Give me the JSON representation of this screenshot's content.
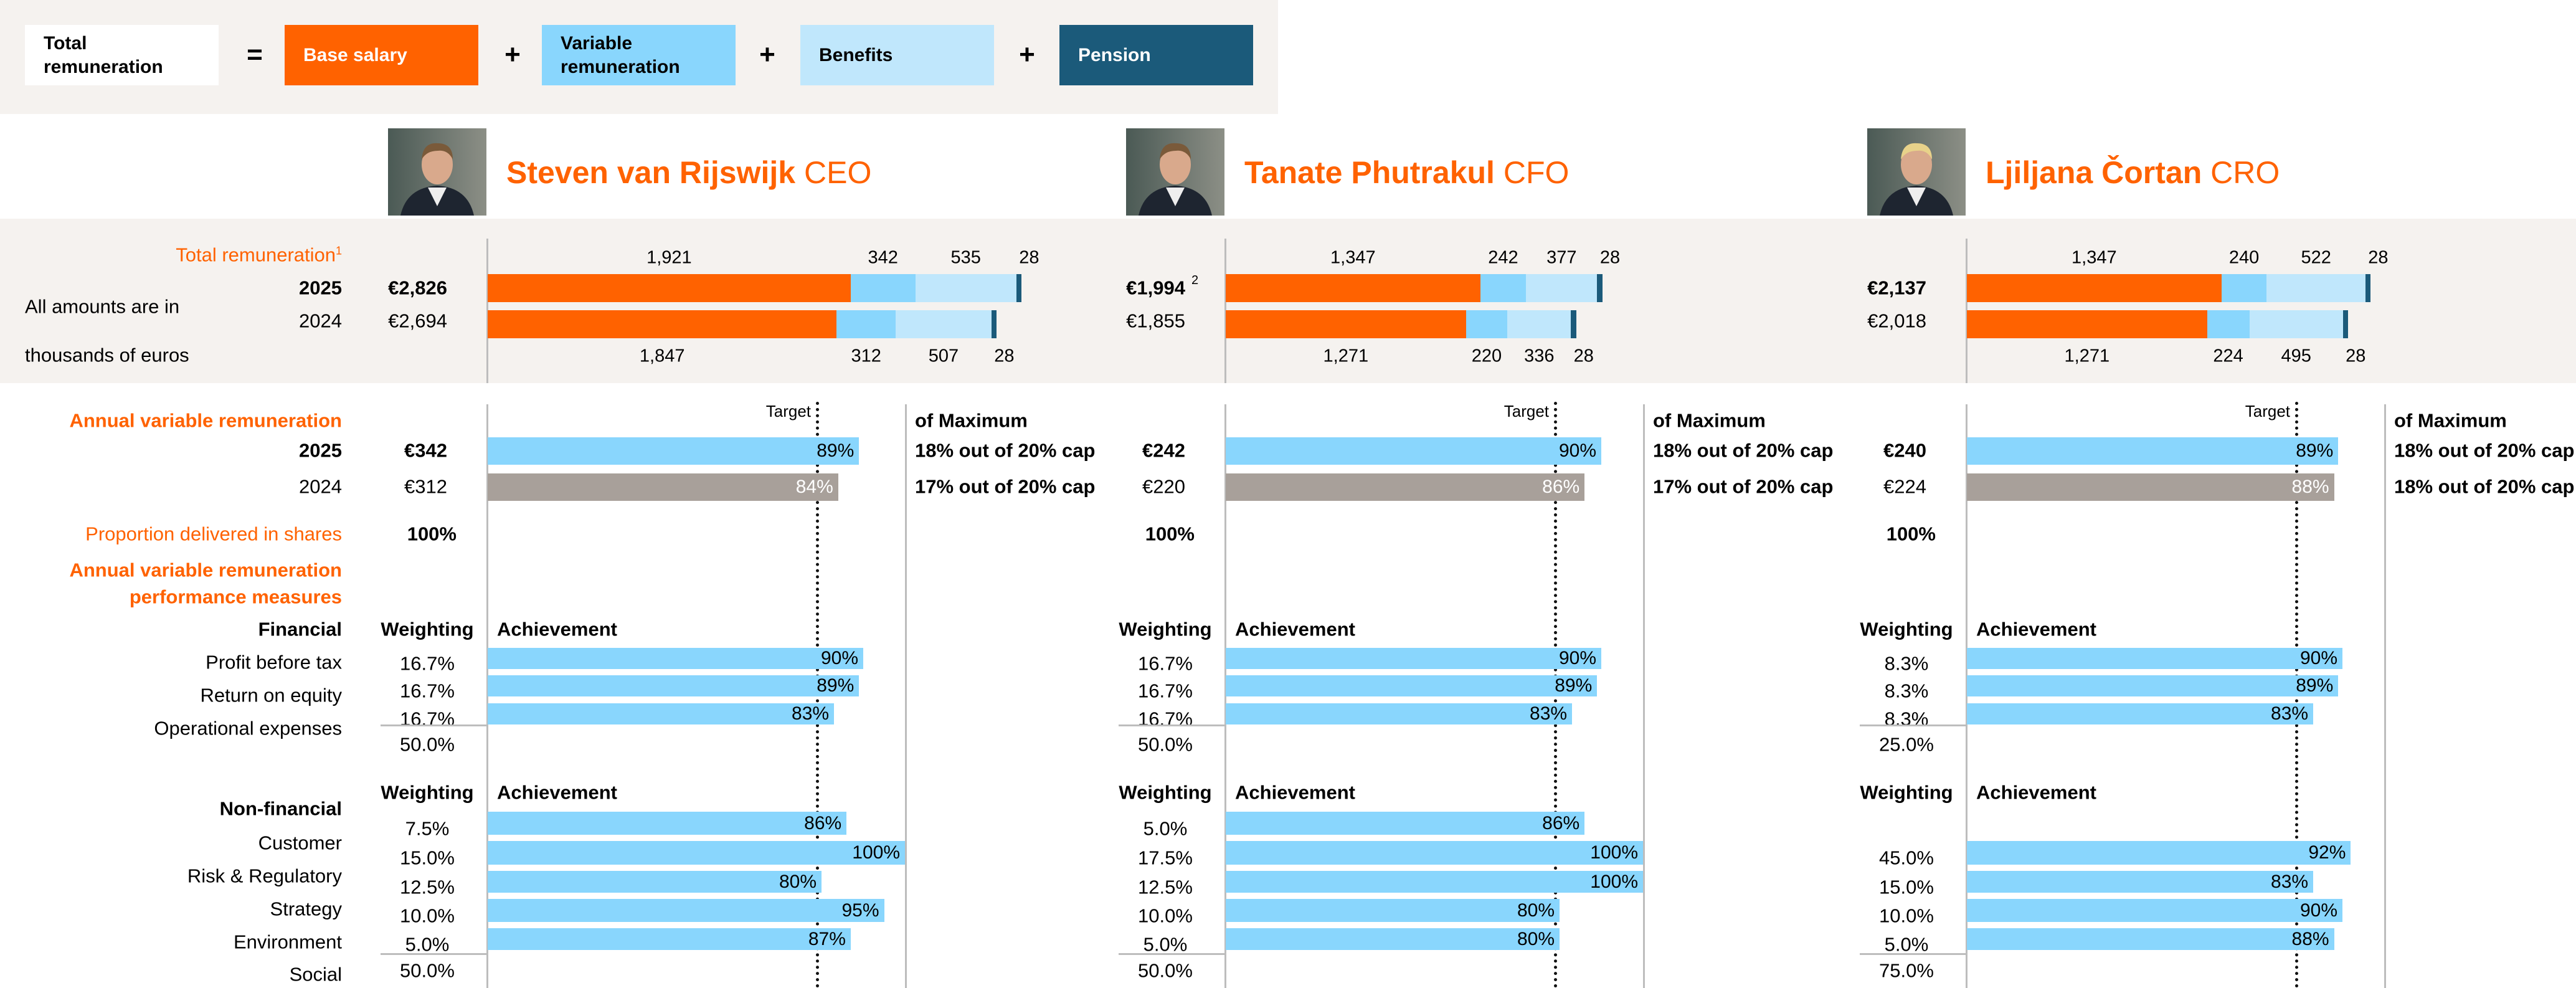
{
  "legend": {
    "total_label": "Total remuneration",
    "equals": "=",
    "plus": "+",
    "items": [
      {
        "label": "Base salary",
        "color": "#ff6200",
        "text_color": "#ffffff"
      },
      {
        "label": "Variable remuneration",
        "color": "#89d6fd",
        "text_color": "#000000"
      },
      {
        "label": "Benefits",
        "color": "#c0e7fc",
        "text_color": "#000000"
      },
      {
        "label": "Pension",
        "color": "#1b5a7a",
        "text_color": "#ffffff"
      }
    ]
  },
  "labels": {
    "total_remuneration": "Total remuneration",
    "total_remuneration_note": "1",
    "year_current": "2025",
    "year_prior": "2024",
    "amounts_note_line1": "All amounts are in",
    "amounts_note_line2": "thousands of euros",
    "avr_title": "Annual variable remuneration",
    "shares_label": "Proportion delivered in shares",
    "measures_title_line1": "Annual variable remuneration",
    "measures_title_line2": "performance measures",
    "financial": "Financial",
    "financial_items": [
      "Profit before tax",
      "Return on equity",
      "Operational expenses"
    ],
    "non_financial": "Non-financial",
    "non_financial_items": [
      "Customer",
      "Risk & Regulatory",
      "Strategy",
      "Environment",
      "Social"
    ],
    "target": "Target",
    "of_maximum": "of Maximum",
    "weighting": "Weighting",
    "achievement": "Achievement"
  },
  "colors": {
    "base": "#ff6200",
    "variable": "#89d6fd",
    "benefits": "#c0e7fc",
    "pension": "#1b5a7a",
    "prior_year_bar": "#a8a09a",
    "band": "#f5f2ef"
  },
  "chart_data": [
    {
      "type": "bar",
      "title": "Total remuneration",
      "stacked": true,
      "orientation": "horizontal",
      "unit": "thousands of euros",
      "series_order": [
        "Base salary",
        "Variable remuneration",
        "Benefits",
        "Pension"
      ],
      "people": [
        "CEO",
        "CFO",
        "CRO"
      ]
    },
    {
      "type": "bar",
      "title": "Annual variable remuneration",
      "orientation": "horizontal",
      "unit": "% achievement",
      "xlim": [
        0,
        100
      ]
    }
  ],
  "people": [
    {
      "name": "Steven van Rijswijk",
      "role": "CEO",
      "total_2025": "€2,826",
      "total_2024": "€2,694",
      "total_note": "",
      "bars_2025": [
        1921,
        342,
        535,
        28
      ],
      "bars_2025_labels": [
        "1,921",
        "342",
        "535",
        "28"
      ],
      "bars_2024": [
        1847,
        312,
        507,
        28
      ],
      "bars_2024_labels": [
        "1,847",
        "312",
        "507",
        "28"
      ],
      "avr_2025": {
        "amount": "€342",
        "pct": 89,
        "pct_label": "89%",
        "max_text": "18% out of 20% cap"
      },
      "avr_2024": {
        "amount": "€312",
        "pct": 84,
        "pct_label": "84%",
        "max_text": "17% out of 20% cap"
      },
      "shares": "100%",
      "financial": {
        "weights": [
          "16.7%",
          "16.7%",
          "16.7%"
        ],
        "achievement": [
          90,
          89,
          83
        ],
        "achievement_labels": [
          "90%",
          "89%",
          "83%"
        ],
        "total": "50.0%"
      },
      "non_financial": {
        "weights": [
          "7.5%",
          "15.0%",
          "12.5%",
          "10.0%",
          "5.0%"
        ],
        "achievement": [
          86,
          100,
          80,
          95,
          87
        ],
        "achievement_labels": [
          "86%",
          "100%",
          "80%",
          "95%",
          "87%"
        ],
        "total": "50.0%"
      }
    },
    {
      "name": "Tanate Phutrakul",
      "role": "CFO",
      "total_2025": "€1,994",
      "total_2024": "€1,855",
      "total_note": "2",
      "bars_2025": [
        1347,
        242,
        377,
        28
      ],
      "bars_2025_labels": [
        "1,347",
        "242",
        "377",
        "28"
      ],
      "bars_2024": [
        1271,
        220,
        336,
        28
      ],
      "bars_2024_labels": [
        "1,271",
        "220",
        "336",
        "28"
      ],
      "avr_2025": {
        "amount": "€242",
        "pct": 90,
        "pct_label": "90%",
        "max_text": "18% out of 20% cap"
      },
      "avr_2024": {
        "amount": "€220",
        "pct": 86,
        "pct_label": "86%",
        "max_text": "17% out of 20% cap"
      },
      "shares": "100%",
      "financial": {
        "weights": [
          "16.7%",
          "16.7%",
          "16.7%"
        ],
        "achievement": [
          90,
          89,
          83
        ],
        "achievement_labels": [
          "90%",
          "89%",
          "83%"
        ],
        "total": "50.0%"
      },
      "non_financial": {
        "weights": [
          "5.0%",
          "17.5%",
          "12.5%",
          "10.0%",
          "5.0%"
        ],
        "achievement": [
          86,
          100,
          100,
          80,
          80
        ],
        "achievement_labels": [
          "86%",
          "100%",
          "100%",
          "80%",
          "80%"
        ],
        "total": "50.0%"
      }
    },
    {
      "name": "Ljiljana Čortan",
      "role": "CRO",
      "total_2025": "€2,137",
      "total_2024": "€2,018",
      "total_note": "",
      "bars_2025": [
        1347,
        240,
        522,
        28
      ],
      "bars_2025_labels": [
        "1,347",
        "240",
        "522",
        "28"
      ],
      "bars_2024": [
        1271,
        224,
        495,
        28
      ],
      "bars_2024_labels": [
        "1,271",
        "224",
        "495",
        "28"
      ],
      "avr_2025": {
        "amount": "€240",
        "pct": 89,
        "pct_label": "89%",
        "max_text": "18% out of 20% cap"
      },
      "avr_2024": {
        "amount": "€224",
        "pct": 88,
        "pct_label": "88%",
        "max_text": "18% out of 20% cap"
      },
      "shares": "100%",
      "financial": {
        "weights": [
          "8.3%",
          "8.3%",
          "8.3%"
        ],
        "achievement": [
          90,
          89,
          83
        ],
        "achievement_labels": [
          "90%",
          "89%",
          "83%"
        ],
        "total": "25.0%"
      },
      "non_financial": {
        "weights": [
          "",
          "45.0%",
          "15.0%",
          "10.0%",
          "5.0%"
        ],
        "achievement": [
          null,
          92,
          83,
          90,
          88
        ],
        "achievement_labels": [
          "",
          "92%",
          "83%",
          "90%",
          "88%"
        ],
        "total": "75.0%"
      }
    }
  ]
}
